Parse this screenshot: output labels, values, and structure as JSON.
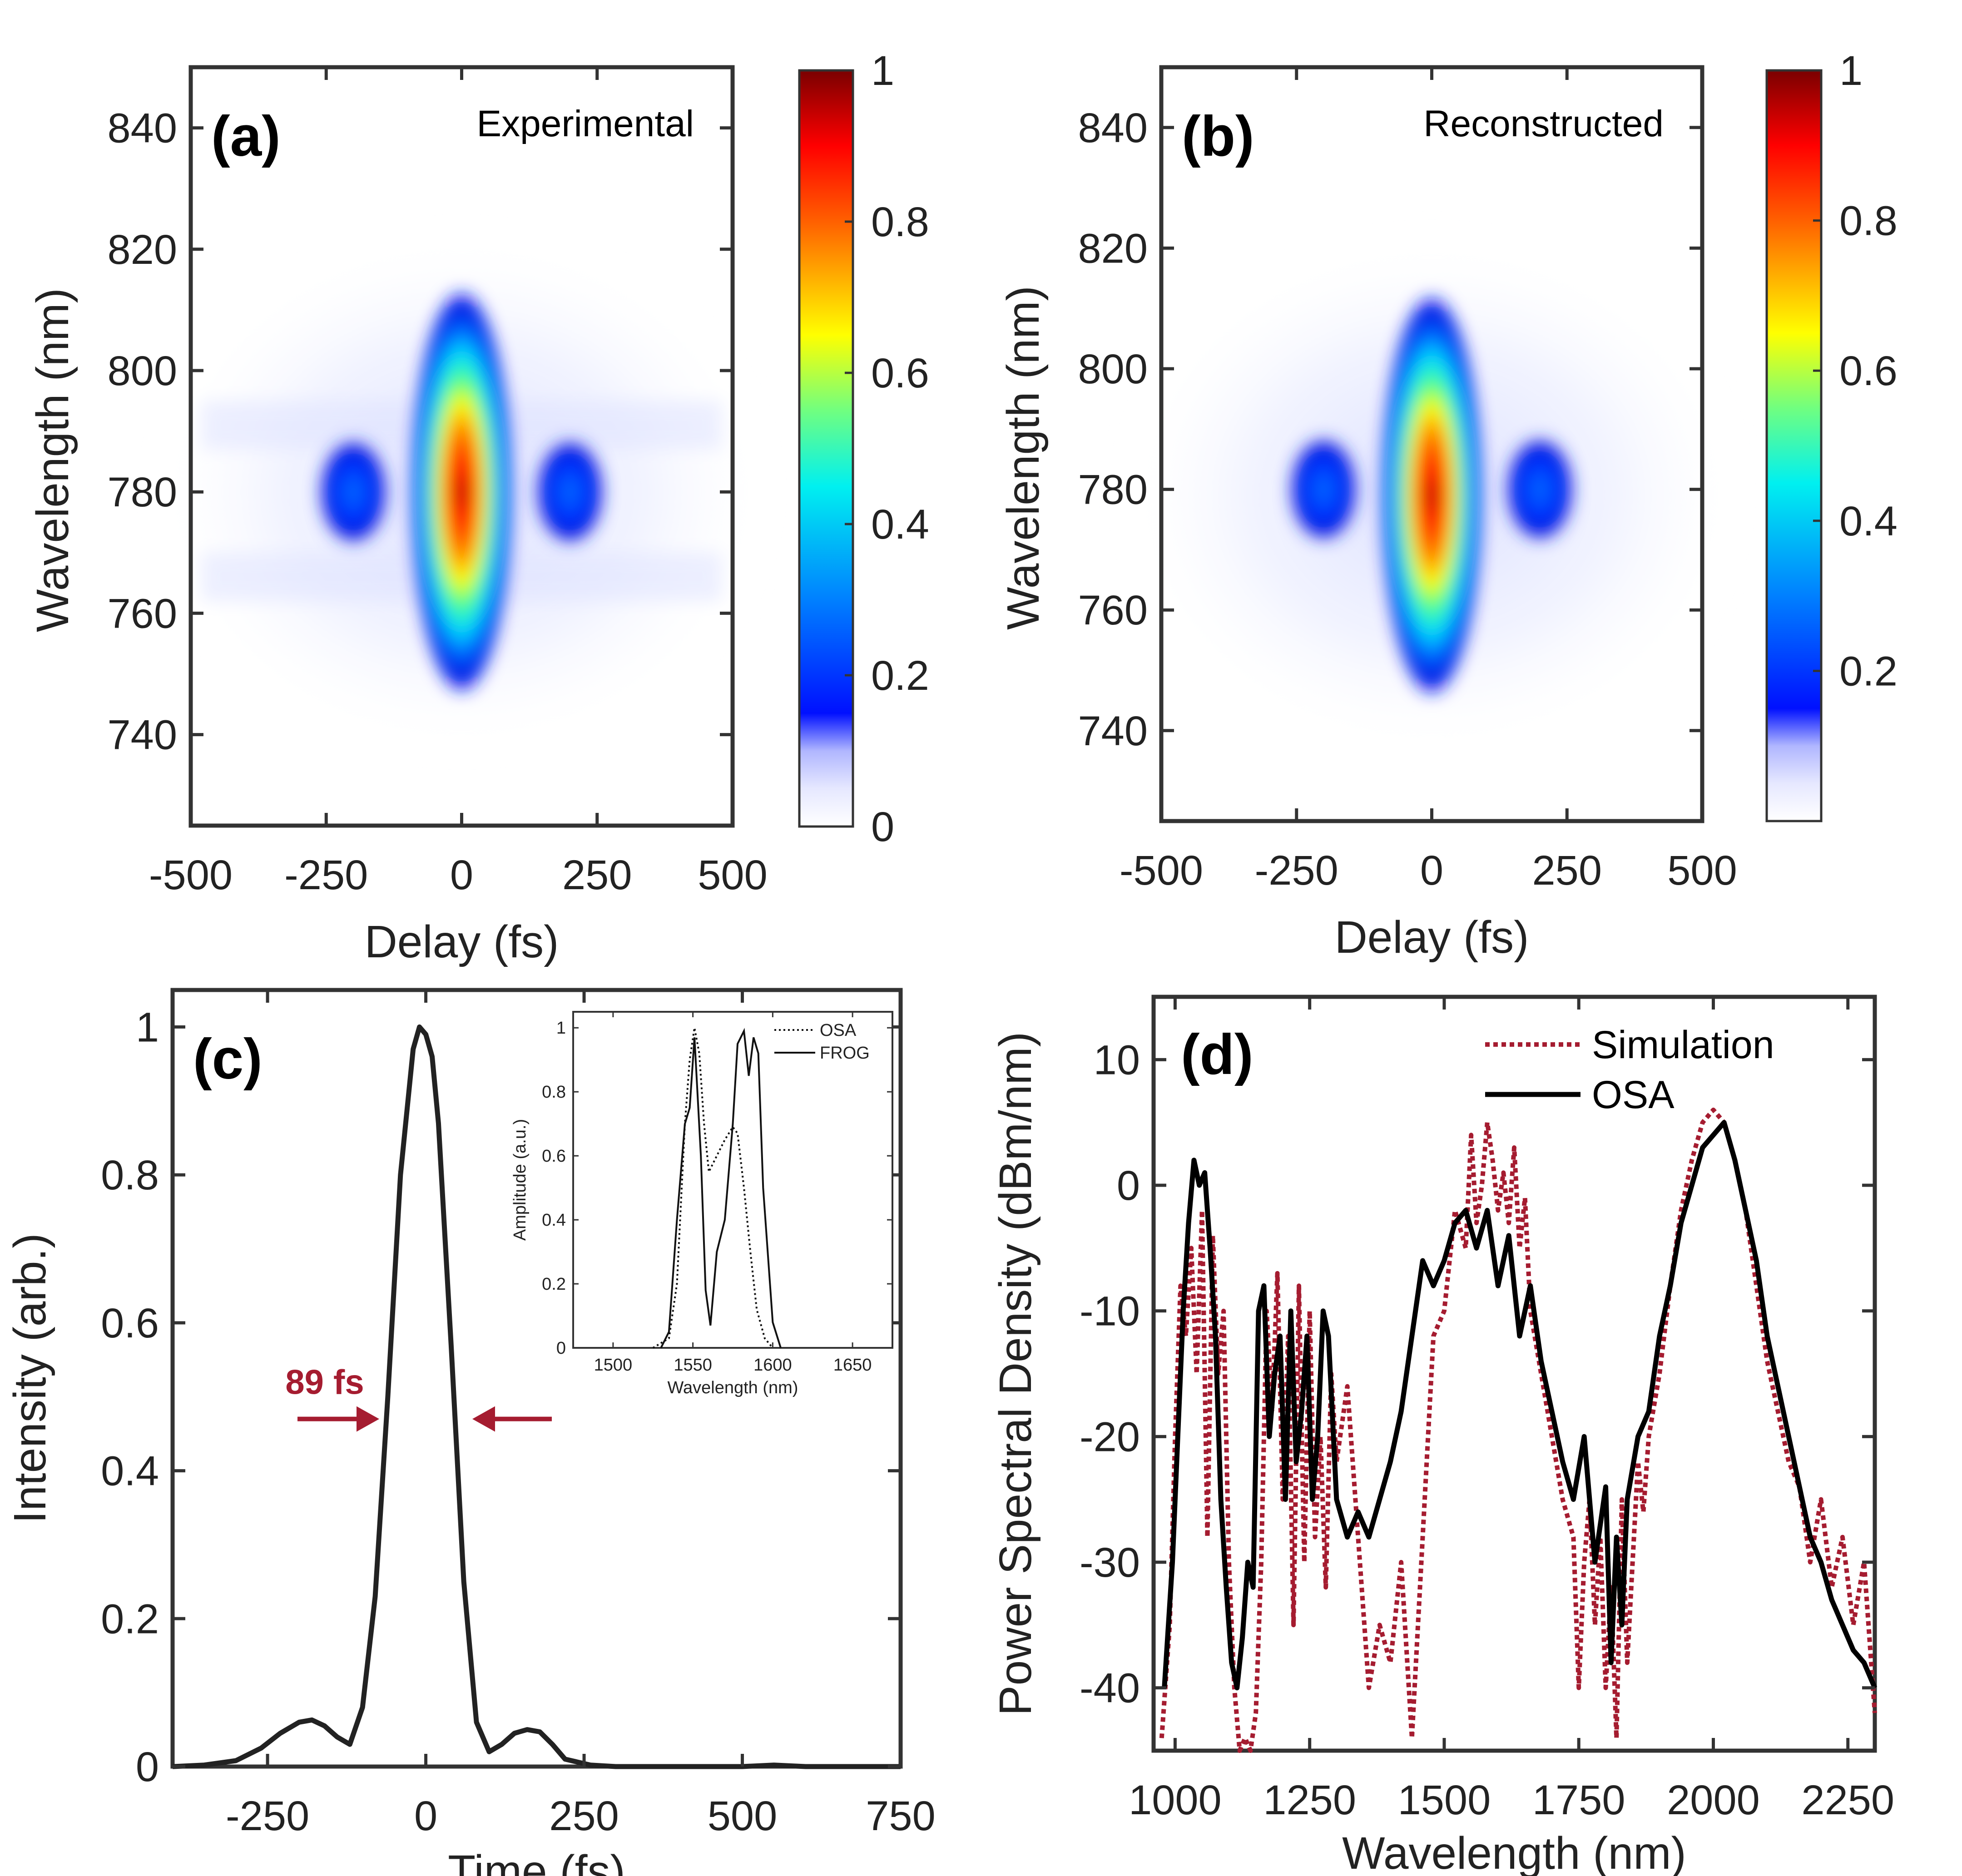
{
  "chart_data": [
    {
      "type": "heatmap",
      "panel": "(a)",
      "title": "Experimental",
      "xlabel": "Delay (fs)",
      "ylabel": "Wavelength (nm)",
      "xlim": [
        -500,
        500
      ],
      "ylim": [
        725,
        850
      ],
      "xticks": [
        "-500",
        "-250",
        "0",
        "250",
        "500"
      ],
      "xtick_values": [
        -500,
        -250,
        0,
        250,
        500
      ],
      "yticks": [
        "740",
        "760",
        "780",
        "800",
        "820",
        "840"
      ],
      "ytick_values": [
        740,
        760,
        780,
        800,
        820,
        840
      ],
      "colorbar": {
        "ticks": [
          "0",
          "0.2",
          "0.4",
          "0.6",
          "0.8",
          "1"
        ],
        "tick_values": [
          0,
          0.2,
          0.4,
          0.6,
          0.8,
          1
        ],
        "range": [
          0,
          1
        ]
      },
      "features": [
        {
          "name": "central lobe",
          "delay": 0,
          "wavelength": 780,
          "peak": 1.0
        },
        {
          "name": "left satellite",
          "delay": -200,
          "wavelength": 780,
          "peak": 0.12
        },
        {
          "name": "right satellite",
          "delay": 200,
          "wavelength": 780,
          "peak": 0.12
        }
      ]
    },
    {
      "type": "heatmap",
      "panel": "(b)",
      "title": "Reconstructed",
      "xlabel": "Delay (fs)",
      "ylabel": "Wavelength (nm)",
      "xlim": [
        -500,
        500
      ],
      "ylim": [
        725,
        850
      ],
      "xticks": [
        "-500",
        "-250",
        "0",
        "250",
        "500"
      ],
      "xtick_values": [
        -500,
        -250,
        0,
        250,
        500
      ],
      "yticks": [
        "740",
        "760",
        "780",
        "800",
        "820",
        "840"
      ],
      "ytick_values": [
        740,
        760,
        780,
        800,
        820,
        840
      ],
      "colorbar": {
        "ticks": [
          "0.2",
          "0.4",
          "0.6",
          "0.8",
          "1"
        ],
        "tick_values": [
          0.2,
          0.4,
          0.6,
          0.8,
          1
        ],
        "range": [
          0,
          1
        ]
      },
      "features": [
        {
          "name": "central lobe",
          "delay": 0,
          "wavelength": 779,
          "peak": 1.0
        },
        {
          "name": "left satellite",
          "delay": -200,
          "wavelength": 780,
          "peak": 0.12
        },
        {
          "name": "right satellite",
          "delay": 200,
          "wavelength": 780,
          "peak": 0.12
        }
      ]
    },
    {
      "type": "line",
      "panel": "(c)",
      "xlabel": "Time (fs)",
      "ylabel": "Intensity (arb.)",
      "xlim": [
        -400,
        750
      ],
      "ylim": [
        0,
        1.05
      ],
      "xticks": [
        "-250",
        "0",
        "250",
        "500",
        "750"
      ],
      "xtick_values": [
        -250,
        0,
        250,
        500,
        750
      ],
      "yticks": [
        "0",
        "0.2",
        "0.4",
        "0.6",
        "0.8",
        "1"
      ],
      "ytick_values": [
        0,
        0.2,
        0.4,
        0.6,
        0.8,
        1
      ],
      "annotation": {
        "text": "89 fs",
        "color": "#A51C30",
        "y": 0.47
      },
      "series": [
        {
          "name": "Intensity",
          "color": "#222222",
          "x": [
            -400,
            -350,
            -300,
            -260,
            -230,
            -200,
            -180,
            -160,
            -140,
            -120,
            -100,
            -80,
            -60,
            -40,
            -20,
            -10,
            0,
            10,
            20,
            40,
            60,
            80,
            100,
            120,
            140,
            160,
            180,
            200,
            220,
            260,
            300,
            400,
            500,
            550,
            600,
            700,
            750
          ],
          "y": [
            0.0,
            0.002,
            0.008,
            0.025,
            0.045,
            0.06,
            0.063,
            0.055,
            0.04,
            0.03,
            0.08,
            0.23,
            0.5,
            0.8,
            0.97,
            1.0,
            0.99,
            0.96,
            0.87,
            0.57,
            0.25,
            0.06,
            0.02,
            0.03,
            0.045,
            0.05,
            0.047,
            0.03,
            0.01,
            0.002,
            0.0,
            0.0,
            0.0,
            0.002,
            0.0,
            0.0,
            0.0
          ]
        }
      ],
      "inset": {
        "type": "line",
        "xlabel": "Wavelength (nm)",
        "ylabel": "Amplitude (a.u.)",
        "xlim": [
          1475,
          1675
        ],
        "ylim": [
          0,
          1.05
        ],
        "xticks": [
          "1500",
          "1550",
          "1600",
          "1650"
        ],
        "xtick_values": [
          1500,
          1550,
          1600,
          1650
        ],
        "yticks": [
          "0",
          "0.2",
          "0.4",
          "0.6",
          "0.8",
          "1"
        ],
        "ytick_values": [
          0,
          0.2,
          0.4,
          0.6,
          0.8,
          1
        ],
        "legend": [
          "OSA",
          "FROG"
        ],
        "series": [
          {
            "name": "OSA",
            "style": "dotted",
            "x": [
              1525,
              1535,
              1540,
              1545,
              1548,
              1551,
              1554,
              1557,
              1560,
              1565,
              1570,
              1575,
              1578,
              1582,
              1586,
              1590,
              1595,
              1600
            ],
            "y": [
              0.0,
              0.03,
              0.2,
              0.7,
              0.9,
              1.0,
              0.92,
              0.7,
              0.55,
              0.6,
              0.65,
              0.69,
              0.67,
              0.5,
              0.3,
              0.12,
              0.03,
              0.0
            ]
          },
          {
            "name": "FROG",
            "style": "solid",
            "x": [
              1530,
              1535,
              1540,
              1545,
              1548,
              1551,
              1555,
              1558,
              1561,
              1565,
              1570,
              1575,
              1578,
              1582,
              1585,
              1588,
              1591,
              1594,
              1600,
              1605
            ],
            "y": [
              0.0,
              0.05,
              0.4,
              0.7,
              0.75,
              0.97,
              0.6,
              0.18,
              0.07,
              0.3,
              0.4,
              0.7,
              0.95,
              0.99,
              0.85,
              0.97,
              0.92,
              0.5,
              0.08,
              0.0
            ]
          }
        ]
      }
    },
    {
      "type": "line",
      "panel": "(d)",
      "xlabel": "Wavelength (nm)",
      "ylabel": "Power Spectral Density (dBm/nm)",
      "xlim": [
        960,
        2300
      ],
      "ylim": [
        -45,
        15
      ],
      "xticks": [
        "1000",
        "1250",
        "1500",
        "1750",
        "2000",
        "2250"
      ],
      "xtick_values": [
        1000,
        1250,
        1500,
        1750,
        2000,
        2250
      ],
      "yticks": [
        "-40",
        "-30",
        "-20",
        "-10",
        "0",
        "10"
      ],
      "ytick_values": [
        -40,
        -30,
        -20,
        -10,
        0,
        10
      ],
      "legend": [
        "Simulation",
        "OSA"
      ],
      "series": [
        {
          "name": "Simulation",
          "color": "#A51C30",
          "style": "dotted",
          "x": [
            975,
            990,
            1000,
            1010,
            1020,
            1030,
            1040,
            1050,
            1060,
            1070,
            1080,
            1090,
            1100,
            1110,
            1120,
            1130,
            1140,
            1150,
            1160,
            1170,
            1180,
            1190,
            1200,
            1210,
            1220,
            1230,
            1240,
            1250,
            1260,
            1270,
            1280,
            1290,
            1300,
            1320,
            1340,
            1360,
            1380,
            1400,
            1420,
            1440,
            1460,
            1480,
            1500,
            1520,
            1540,
            1550,
            1560,
            1570,
            1580,
            1590,
            1600,
            1610,
            1620,
            1630,
            1640,
            1650,
            1660,
            1680,
            1700,
            1720,
            1740,
            1750,
            1760,
            1770,
            1780,
            1790,
            1800,
            1810,
            1820,
            1830,
            1840,
            1850,
            1860,
            1870,
            1880,
            1900,
            1920,
            1940,
            1960,
            1980,
            2000,
            2020,
            2040,
            2060,
            2080,
            2100,
            2120,
            2140,
            2160,
            2180,
            2200,
            2220,
            2240,
            2260,
            2280,
            2300
          ],
          "y": [
            -44,
            -35,
            -20,
            -8,
            -12,
            -5,
            -15,
            -2,
            -28,
            -4,
            -15,
            -10,
            -30,
            -40,
            -45,
            -44,
            -45,
            -42,
            -30,
            -10,
            -18,
            -7,
            -25,
            -12,
            -35,
            -8,
            -30,
            -10,
            -28,
            -20,
            -32,
            -15,
            -22,
            -16,
            -28,
            -40,
            -35,
            -38,
            -30,
            -44,
            -28,
            -12,
            -10,
            -2,
            -5,
            4,
            -3,
            0,
            5,
            2,
            -2,
            1,
            -3,
            3,
            -5,
            -1,
            -10,
            -15,
            -20,
            -25,
            -28,
            -40,
            -30,
            -25,
            -35,
            -28,
            -40,
            -32,
            -44,
            -25,
            -38,
            -30,
            -22,
            -26,
            -20,
            -15,
            -8,
            -2,
            2,
            5,
            6,
            5,
            2,
            -2,
            -8,
            -14,
            -18,
            -22,
            -24,
            -30,
            -25,
            -32,
            -28,
            -35,
            -30,
            -42
          ]
        },
        {
          "name": "OSA",
          "color": "#000000",
          "style": "solid",
          "x": [
            980,
            995,
            1005,
            1015,
            1025,
            1035,
            1045,
            1055,
            1065,
            1075,
            1085,
            1095,
            1105,
            1115,
            1125,
            1135,
            1145,
            1155,
            1165,
            1175,
            1185,
            1195,
            1205,
            1215,
            1225,
            1235,
            1245,
            1255,
            1265,
            1275,
            1285,
            1300,
            1320,
            1340,
            1360,
            1380,
            1400,
            1420,
            1440,
            1460,
            1480,
            1500,
            1520,
            1540,
            1560,
            1580,
            1600,
            1620,
            1640,
            1660,
            1680,
            1700,
            1720,
            1740,
            1760,
            1780,
            1800,
            1810,
            1820,
            1830,
            1840,
            1860,
            1880,
            1900,
            1920,
            1940,
            1960,
            1980,
            2000,
            2020,
            2040,
            2060,
            2080,
            2100,
            2120,
            2140,
            2160,
            2180,
            2200,
            2220,
            2240,
            2260,
            2280,
            2300
          ],
          "y": [
            -40,
            -30,
            -20,
            -10,
            -3,
            2,
            0,
            1,
            -5,
            -12,
            -25,
            -32,
            -38,
            -40,
            -36,
            -30,
            -32,
            -10,
            -8,
            -20,
            -15,
            -12,
            -25,
            -10,
            -22,
            -18,
            -12,
            -25,
            -20,
            -10,
            -12,
            -25,
            -28,
            -26,
            -28,
            -25,
            -22,
            -18,
            -12,
            -6,
            -8,
            -6,
            -3,
            -2,
            -5,
            -2,
            -8,
            -4,
            -12,
            -8,
            -14,
            -18,
            -22,
            -25,
            -20,
            -30,
            -24,
            -38,
            -28,
            -35,
            -25,
            -20,
            -18,
            -12,
            -8,
            -3,
            0,
            3,
            4,
            5,
            2,
            -2,
            -6,
            -12,
            -16,
            -20,
            -24,
            -28,
            -30,
            -33,
            -35,
            -37,
            -38,
            -40
          ]
        }
      ]
    }
  ]
}
